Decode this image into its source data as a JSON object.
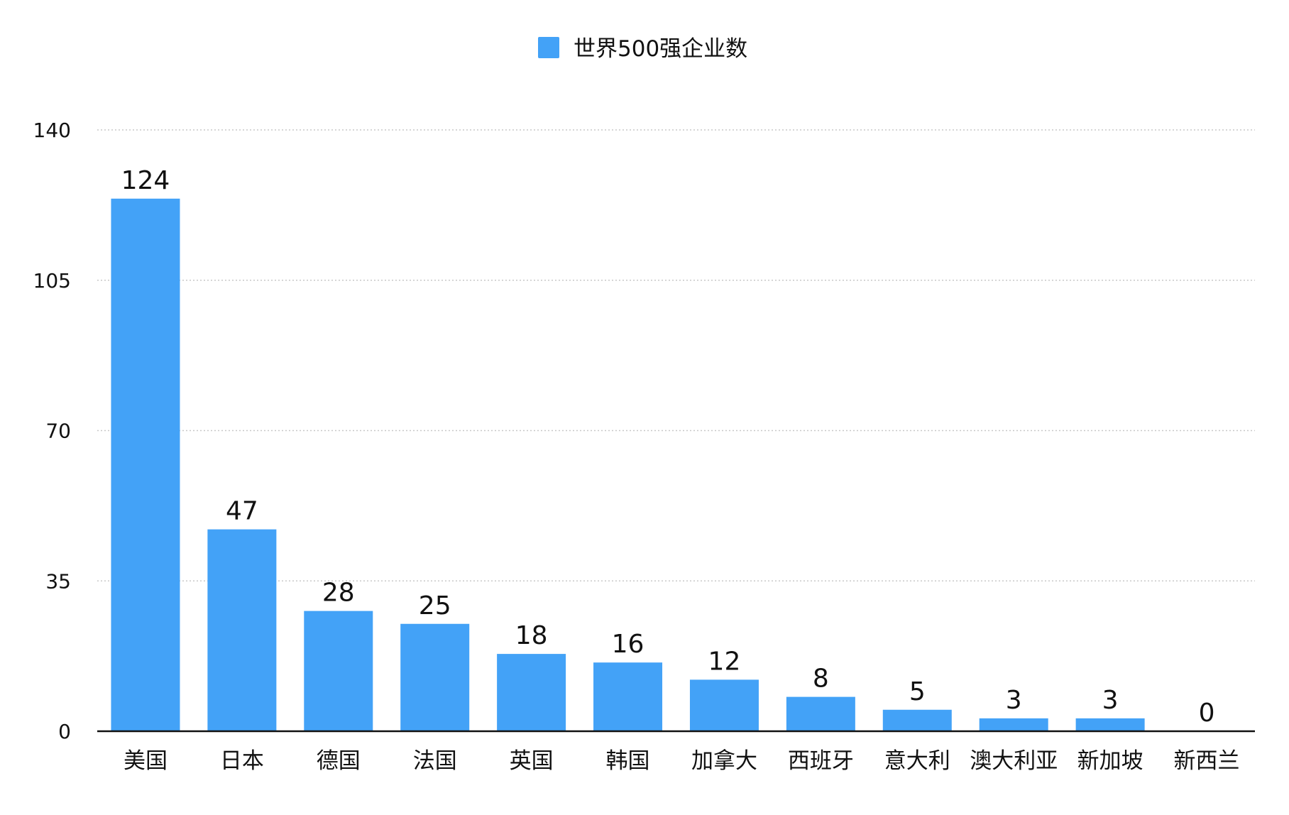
{
  "chart_data": {
    "type": "bar",
    "categories": [
      "美国",
      "日本",
      "德国",
      "法国",
      "英国",
      "韩国",
      "加拿大",
      "西班牙",
      "意大利",
      "澳大利亚",
      "新加坡",
      "新西兰"
    ],
    "series": [
      {
        "name": "世界500强企业数",
        "values": [
          124,
          47,
          28,
          25,
          18,
          16,
          12,
          8,
          5,
          3,
          3,
          0
        ],
        "color": "#43A2F7"
      }
    ],
    "yticks": [
      "0",
      "35",
      "70",
      "105",
      "140"
    ],
    "ylim": [
      0,
      140
    ],
    "grid": "horizontal dotted",
    "legend": "top-center",
    "title": "",
    "xlabel": "",
    "ylabel": ""
  }
}
